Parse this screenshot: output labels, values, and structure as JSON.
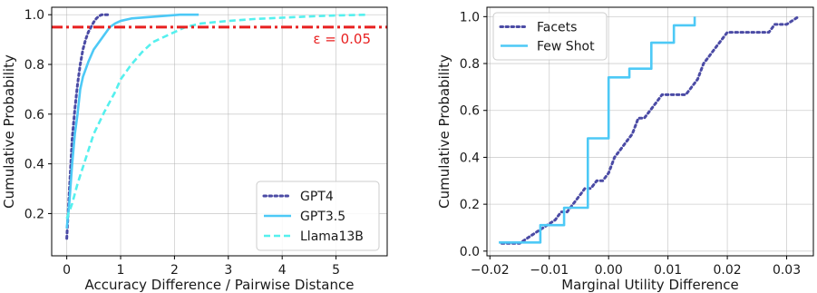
{
  "chart_data": [
    {
      "type": "line",
      "xlabel": "Accuracy Difference / Pairwise Distance",
      "ylabel": "Cumulative Probability",
      "xlim": [
        -0.28,
        5.95
      ],
      "ylim": [
        0.03,
        1.03
      ],
      "xticks": [
        0,
        1,
        2,
        3,
        4,
        5
      ],
      "yticks": [
        0.2,
        0.4,
        0.6,
        0.8,
        1.0
      ],
      "ytick_labels": [
        "0.2",
        "0.4",
        "0.6",
        "0.8",
        "1.0"
      ],
      "grid": true,
      "legend": "lower-right",
      "series": [
        {
          "name": "GPT4",
          "color": "#4b4ba5",
          "style": "dotted",
          "x": [
            0,
            0.05,
            0.1,
            0.15,
            0.2,
            0.25,
            0.3,
            0.35,
            0.4,
            0.45,
            0.5,
            0.55,
            0.6,
            0.65,
            0.7,
            0.8
          ],
          "y": [
            0.1,
            0.3,
            0.5,
            0.62,
            0.72,
            0.8,
            0.86,
            0.9,
            0.93,
            0.95,
            0.97,
            0.985,
            0.995,
            1.0,
            1.0,
            1.0
          ]
        },
        {
          "name": "GPT3.5",
          "color": "#4dc9f6",
          "style": "solid",
          "x": [
            0,
            0.05,
            0.1,
            0.15,
            0.2,
            0.25,
            0.3,
            0.4,
            0.5,
            0.6,
            0.7,
            0.8,
            0.9,
            1.0,
            1.2,
            1.5,
            1.8,
            2.1,
            2.45
          ],
          "y": [
            0.14,
            0.25,
            0.4,
            0.52,
            0.6,
            0.7,
            0.75,
            0.81,
            0.86,
            0.89,
            0.92,
            0.95,
            0.965,
            0.975,
            0.985,
            0.99,
            0.995,
            1.0,
            1.0
          ]
        },
        {
          "name": "Llama13B",
          "color": "#55f0ee",
          "style": "dashed",
          "x": [
            0,
            0.1,
            0.2,
            0.35,
            0.5,
            0.7,
            0.9,
            1.0,
            1.2,
            1.4,
            1.6,
            1.8,
            2.0,
            2.2,
            2.5,
            3.0,
            3.5,
            4.0,
            4.5,
            5.0,
            5.6
          ],
          "y": [
            0.18,
            0.24,
            0.32,
            0.42,
            0.52,
            0.61,
            0.69,
            0.74,
            0.8,
            0.85,
            0.89,
            0.91,
            0.93,
            0.95,
            0.965,
            0.975,
            0.983,
            0.988,
            0.993,
            0.997,
            1.0
          ]
        }
      ],
      "reference_line": {
        "y": 0.95,
        "color": "#e82020",
        "style": "dashdot",
        "label": "ε = 0.05"
      }
    },
    {
      "type": "line",
      "xlabel": "Marginal Utility Difference",
      "ylabel": "Cumulative Probability",
      "xlim": [
        -0.0205,
        0.0345
      ],
      "ylim": [
        -0.02,
        1.04
      ],
      "xticks": [
        -0.02,
        -0.01,
        0.0,
        0.01,
        0.02,
        0.03
      ],
      "xtick_labels": [
        "−0.02",
        "−0.01",
        "0.00",
        "0.01",
        "0.02",
        "0.03"
      ],
      "yticks": [
        0.0,
        0.2,
        0.4,
        0.6,
        0.8,
        1.0
      ],
      "ytick_labels": [
        "0.0",
        "0.2",
        "0.4",
        "0.6",
        "0.8",
        "1.0"
      ],
      "grid": true,
      "legend": "upper-left",
      "series": [
        {
          "name": "Facets",
          "color": "#4b4ba5",
          "style": "dotted",
          "x": [
            -0.018,
            -0.015,
            -0.013,
            -0.011,
            -0.009,
            -0.008,
            -0.007,
            -0.006,
            -0.005,
            -0.004,
            -0.003,
            -0.002,
            -0.001,
            0.0,
            0.001,
            0.002,
            0.003,
            0.004,
            0.005,
            0.006,
            0.007,
            0.008,
            0.009,
            0.01,
            0.011,
            0.013,
            0.014,
            0.015,
            0.016,
            0.017,
            0.018,
            0.019,
            0.02,
            0.021,
            0.025,
            0.027,
            0.028,
            0.03,
            0.032
          ],
          "y": [
            0.033,
            0.033,
            0.067,
            0.1,
            0.133,
            0.167,
            0.167,
            0.2,
            0.233,
            0.267,
            0.267,
            0.3,
            0.3,
            0.333,
            0.4,
            0.433,
            0.467,
            0.5,
            0.567,
            0.567,
            0.6,
            0.633,
            0.667,
            0.667,
            0.667,
            0.667,
            0.7,
            0.733,
            0.8,
            0.833,
            0.867,
            0.9,
            0.933,
            0.933,
            0.933,
            0.933,
            0.967,
            0.967,
            1.0
          ]
        },
        {
          "name": "Few Shot",
          "color": "#4dc9f6",
          "style": "solid-steps",
          "x": [
            -0.0185,
            -0.0115,
            -0.0115,
            -0.0075,
            -0.0075,
            -0.0045,
            -0.0045,
            -0.0035,
            -0.0035,
            0.0,
            0.0,
            0.0035,
            0.0035,
            0.0072,
            0.0072,
            0.011,
            0.011,
            0.0145,
            0.0145
          ],
          "y": [
            0.037,
            0.037,
            0.111,
            0.111,
            0.185,
            0.185,
            0.185,
            0.185,
            0.481,
            0.481,
            0.741,
            0.741,
            0.778,
            0.778,
            0.889,
            0.889,
            0.963,
            0.963,
            1.0
          ]
        }
      ]
    }
  ]
}
